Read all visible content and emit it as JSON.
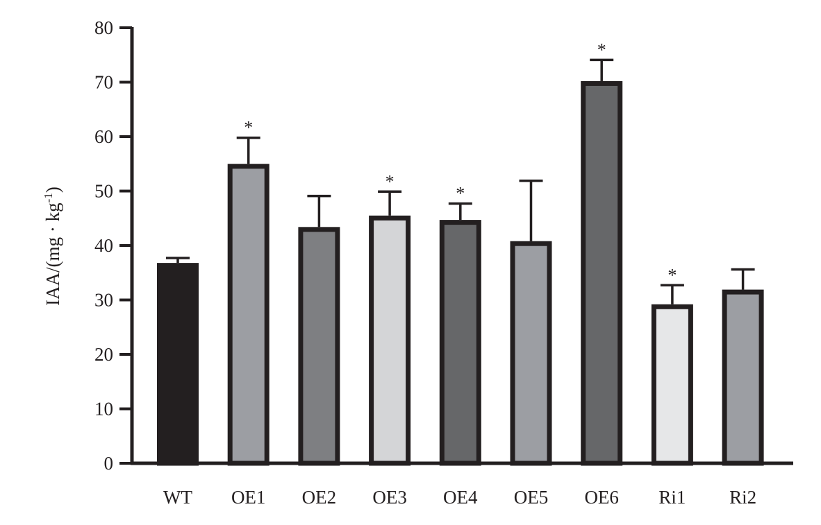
{
  "chart_data": {
    "type": "bar",
    "title": "",
    "xlabel": "",
    "ylabel": "IAA/(mg · kg",
    "ylabel_sup": "-1",
    "ylabel_close": ")",
    "ylim": [
      0,
      80
    ],
    "yticks": [
      0,
      10,
      20,
      30,
      40,
      50,
      60,
      70,
      80
    ],
    "ytick_labels": [
      "0",
      "10",
      "20",
      "30",
      "40",
      "50",
      "60",
      "70",
      "80"
    ],
    "grid": false,
    "legend": "none",
    "categories": [
      "WT",
      "OE1",
      "OE2",
      "OE3",
      "OE4",
      "OE5",
      "OE6",
      "Ri1",
      "Ri2"
    ],
    "values": [
      36.8,
      55.0,
      43.4,
      45.5,
      44.7,
      40.8,
      70.2,
      29.2,
      31.9
    ],
    "errors": [
      0.9,
      4.8,
      5.7,
      4.4,
      3.0,
      11.1,
      3.9,
      3.5,
      3.7
    ],
    "significant": [
      false,
      true,
      false,
      true,
      true,
      false,
      true,
      true,
      false
    ],
    "significance_mark": "*",
    "colors": [
      "#231f20",
      "#9c9ea3",
      "#7e7f82",
      "#d4d5d7",
      "#666769",
      "#9c9ea3",
      "#666769",
      "#e6e7e8",
      "#9c9ea3"
    ],
    "edge_color": "#231f20"
  }
}
